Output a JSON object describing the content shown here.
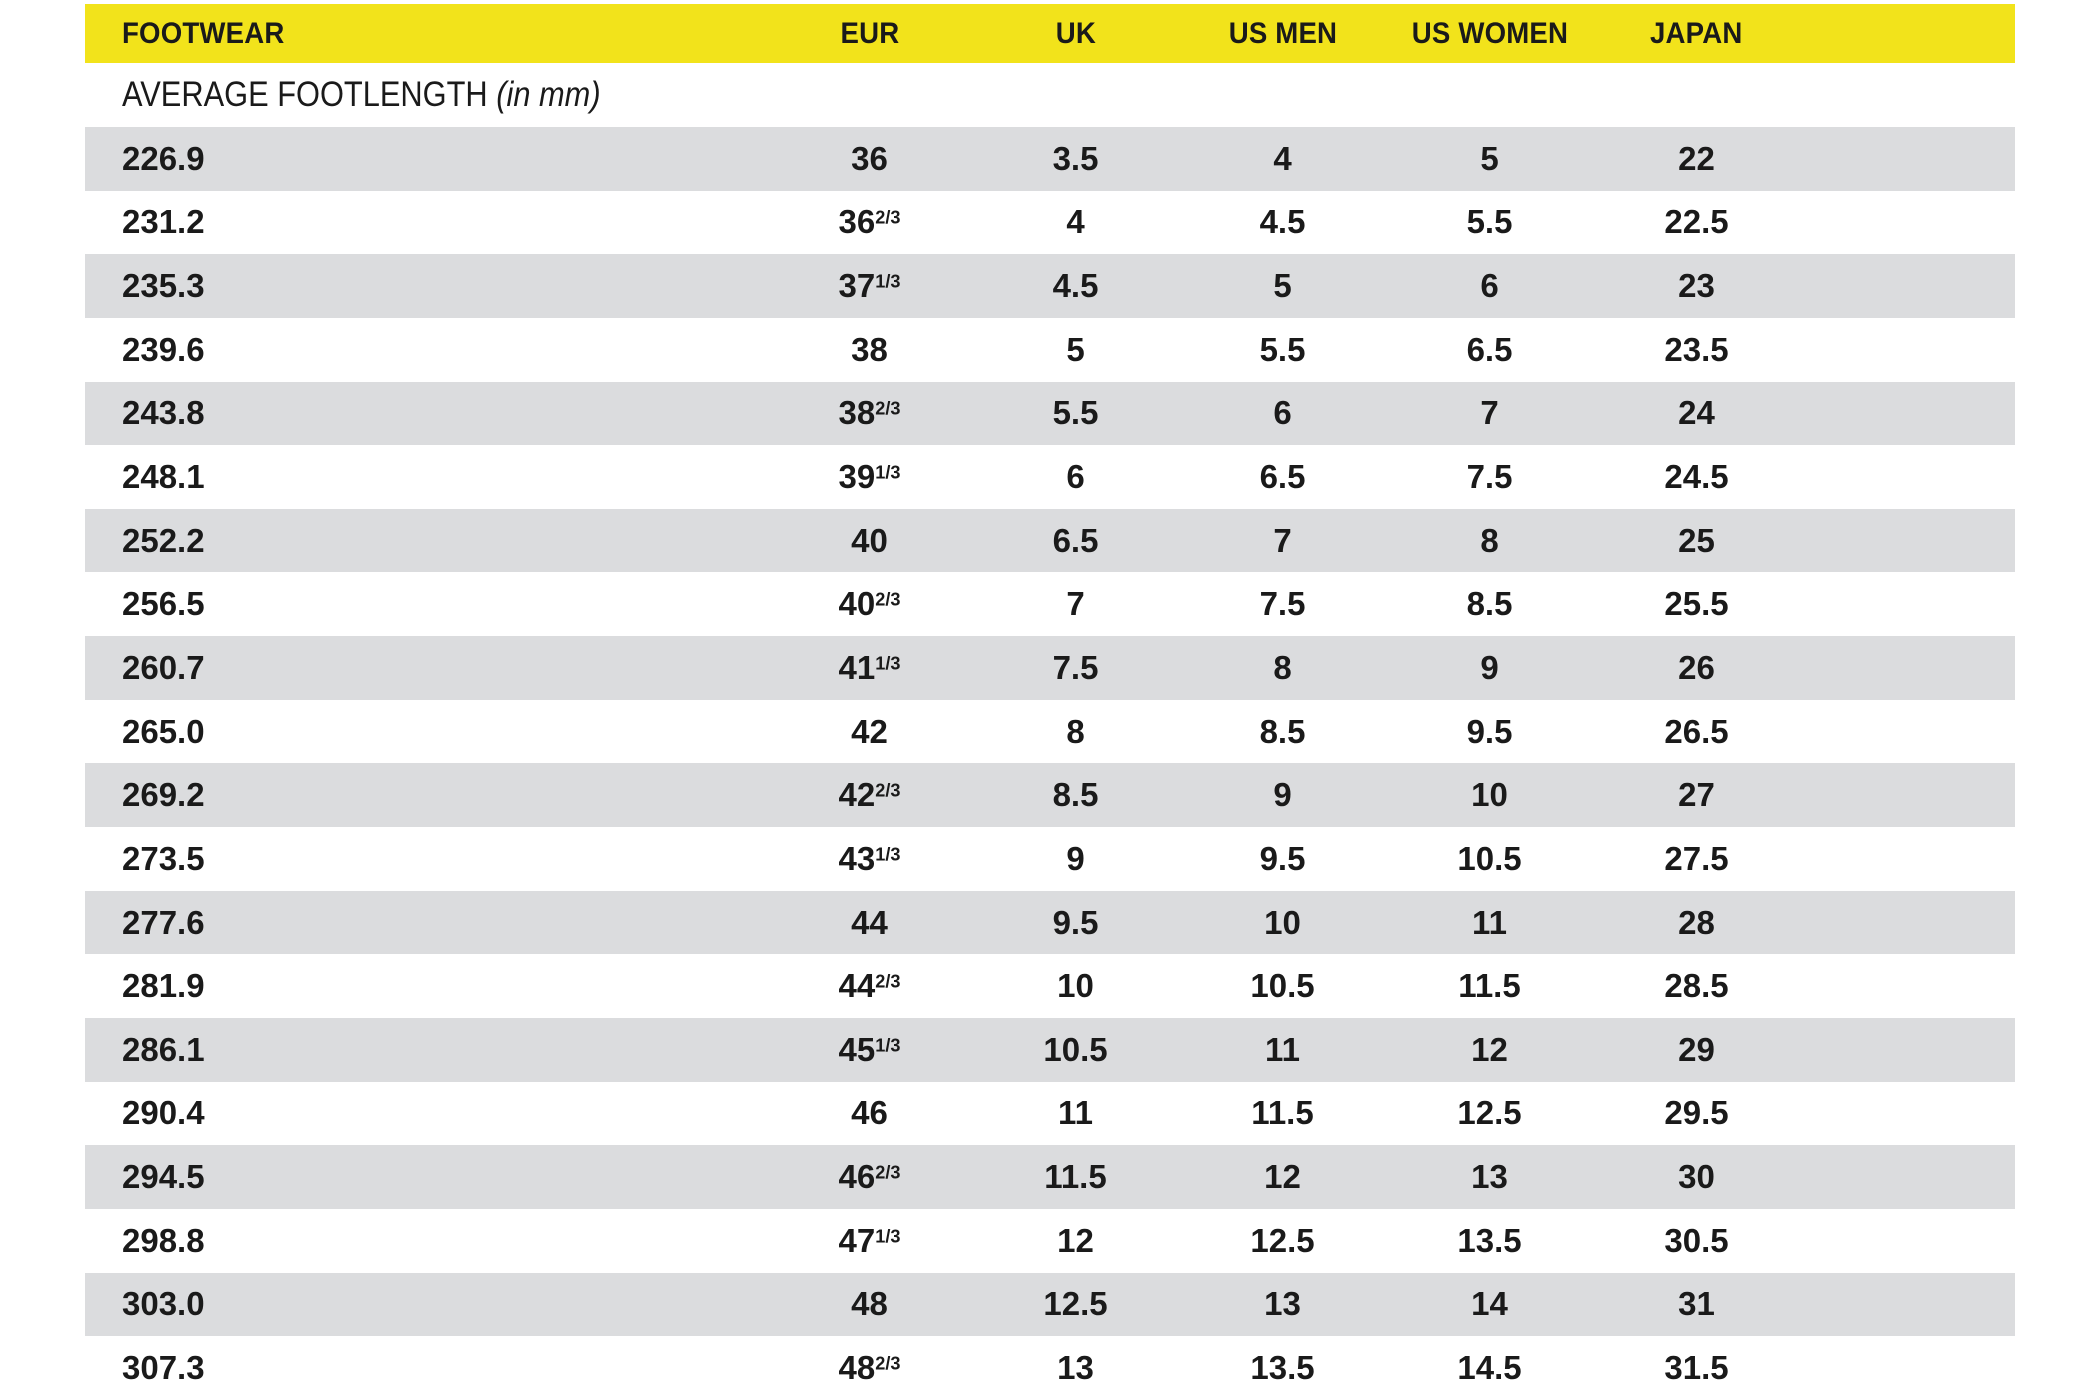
{
  "colors": {
    "header_bg": "#f2e31b",
    "row_alt_bg": "#dbdcde",
    "row_bg": "#ffffff",
    "text": "#1a1a1a"
  },
  "header": {
    "columns": [
      "FOOTWEAR",
      "EUR",
      "UK",
      "US MEN",
      "US WOMEN",
      "JAPAN"
    ]
  },
  "subtitle": {
    "label": "AVERAGE FOOTLENGTH",
    "unit": "(in mm)"
  },
  "chart_data": {
    "type": "table",
    "columns": [
      "AVERAGE FOOTLENGTH (in mm)",
      "EUR",
      "UK",
      "US MEN",
      "US WOMEN",
      "JAPAN"
    ],
    "rows": [
      [
        "226.9",
        "36",
        "3.5",
        "4",
        "5",
        "22"
      ],
      [
        "231.2",
        "36 2/3",
        "4",
        "4.5",
        "5.5",
        "22.5"
      ],
      [
        "235.3",
        "37 1/3",
        "4.5",
        "5",
        "6",
        "23"
      ],
      [
        "239.6",
        "38",
        "5",
        "5.5",
        "6.5",
        "23.5"
      ],
      [
        "243.8",
        "38 2/3",
        "5.5",
        "6",
        "7",
        "24"
      ],
      [
        "248.1",
        "39 1/3",
        "6",
        "6.5",
        "7.5",
        "24.5"
      ],
      [
        "252.2",
        "40",
        "6.5",
        "7",
        "8",
        "25"
      ],
      [
        "256.5",
        "40 2/3",
        "7",
        "7.5",
        "8.5",
        "25.5"
      ],
      [
        "260.7",
        "41 1/3",
        "7.5",
        "8",
        "9",
        "26"
      ],
      [
        "265.0",
        "42",
        "8",
        "8.5",
        "9.5",
        "26.5"
      ],
      [
        "269.2",
        "42 2/3",
        "8.5",
        "9",
        "10",
        "27"
      ],
      [
        "273.5",
        "43 1/3",
        "9",
        "9.5",
        "10.5",
        "27.5"
      ],
      [
        "277.6",
        "44",
        "9.5",
        "10",
        "11",
        "28"
      ],
      [
        "281.9",
        "44 2/3",
        "10",
        "10.5",
        "11.5",
        "28.5"
      ],
      [
        "286.1",
        "45 1/3",
        "10.5",
        "11",
        "12",
        "29"
      ],
      [
        "290.4",
        "46",
        "11",
        "11.5",
        "12.5",
        "29.5"
      ],
      [
        "294.5",
        "46 2/3",
        "11.5",
        "12",
        "13",
        "30"
      ],
      [
        "298.8",
        "47 1/3",
        "12",
        "12.5",
        "13.5",
        "30.5"
      ],
      [
        "303.0",
        "48",
        "12.5",
        "13",
        "14",
        "31"
      ],
      [
        "307.3",
        "48 2/3",
        "13",
        "13.5",
        "14.5",
        "31.5"
      ]
    ]
  }
}
